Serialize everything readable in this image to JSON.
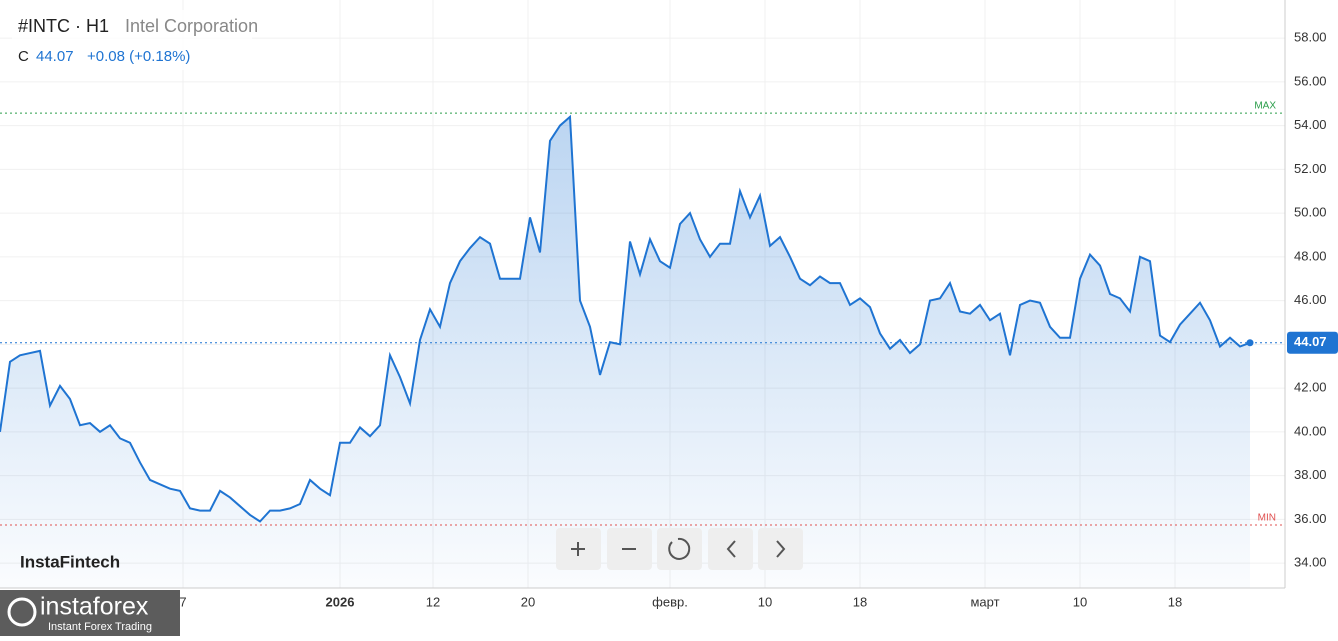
{
  "chart_data": {
    "type": "area-line",
    "symbol": "#INTC · H1",
    "name": "Intel Corporation",
    "close_label": "C",
    "last_value": 44.07,
    "change_label": "+0.08 (+0.18%)",
    "watermark": "InstaFintech",
    "color": "#1f74d2",
    "xlim": [
      0,
      128.5
    ],
    "xticks": [
      {
        "value": 18.3,
        "label": "7"
      },
      {
        "value": 34,
        "label": "2026"
      },
      {
        "value": 43.3,
        "label": "12"
      },
      {
        "value": 52.8,
        "label": "20"
      },
      {
        "value": 67,
        "label": "февр."
      },
      {
        "value": 76.5,
        "label": "10"
      },
      {
        "value": 86,
        "label": "18"
      },
      {
        "value": 98.5,
        "label": "март"
      },
      {
        "value": 108,
        "label": "10"
      },
      {
        "value": 117.5,
        "label": "18"
      }
    ],
    "ylim": [
      32.86,
      59.74
    ],
    "yticks": [
      {
        "value": 34,
        "label": "34.00"
      },
      {
        "value": 36,
        "label": "36.00"
      },
      {
        "value": 38,
        "label": "38.00"
      },
      {
        "value": 40,
        "label": "40.00"
      },
      {
        "value": 42,
        "label": "42.00"
      },
      {
        "value": 44,
        "label": "44.00"
      },
      {
        "value": 46,
        "label": "46.00"
      },
      {
        "value": 48,
        "label": "48.00"
      },
      {
        "value": 50,
        "label": "50.00"
      },
      {
        "value": 52,
        "label": "52.00"
      },
      {
        "value": 54,
        "label": "54.00"
      },
      {
        "value": 56,
        "label": "56.00"
      },
      {
        "value": 58,
        "label": "58.00"
      }
    ],
    "grid": true,
    "max_label": "MAX",
    "max_value": 54.57,
    "min_label": "MIN",
    "min_value": 35.74,
    "values": [
      40.0,
      43.2,
      43.5,
      43.6,
      43.7,
      41.2,
      42.1,
      41.5,
      40.3,
      40.4,
      40.0,
      40.3,
      39.7,
      39.5,
      38.6,
      37.8,
      37.6,
      37.4,
      37.3,
      36.5,
      36.4,
      36.4,
      37.3,
      37.0,
      36.6,
      36.2,
      35.9,
      36.4,
      36.4,
      36.5,
      36.7,
      37.8,
      37.4,
      37.1,
      39.5,
      39.5,
      40.2,
      39.8,
      40.3,
      43.5,
      42.5,
      41.3,
      44.2,
      45.6,
      44.8,
      46.8,
      47.8,
      48.4,
      48.9,
      48.6,
      47.0,
      47.0,
      47.0,
      49.8,
      48.2,
      53.3,
      54.0,
      54.4,
      46.0,
      44.8,
      42.6,
      44.1,
      44.0,
      48.7,
      47.2,
      48.8,
      47.8,
      47.5,
      49.5,
      50.0,
      48.8,
      48.0,
      48.6,
      48.6,
      51.0,
      49.8,
      50.8,
      48.5,
      48.9,
      48.0,
      47.0,
      46.7,
      47.1,
      46.8,
      46.8,
      45.8,
      46.1,
      45.7,
      44.5,
      43.8,
      44.2,
      43.6,
      44.0,
      46.0,
      46.1,
      46.8,
      45.5,
      45.4,
      45.8,
      45.1,
      45.4,
      43.5,
      45.8,
      46.0,
      45.9,
      44.8,
      44.3,
      44.3,
      47.0,
      48.1,
      47.6,
      46.3,
      46.1,
      45.5,
      48.0,
      47.8,
      44.4,
      44.1,
      44.9,
      45.4,
      45.9,
      45.1,
      43.9,
      44.3,
      43.9,
      44.07
    ]
  },
  "brand": {
    "logo": "instaforex",
    "tagline": "Instant Forex Trading"
  }
}
